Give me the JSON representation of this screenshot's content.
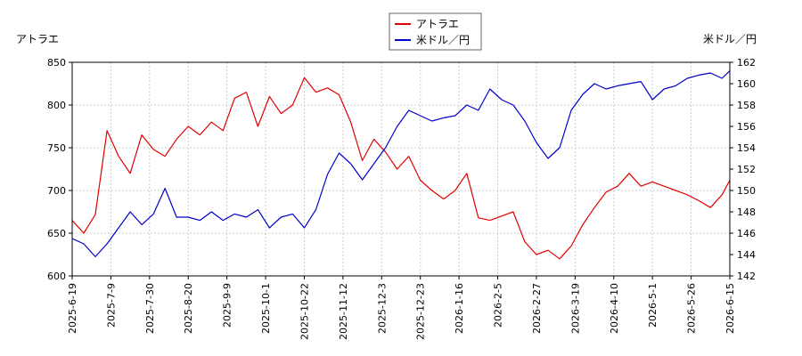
{
  "chart_data": {
    "type": "line",
    "left_axis_label": "アトラエ",
    "right_axis_label": "米ドル／円",
    "legend": [
      "アトラエ",
      "米ドル／円"
    ],
    "legend_position": "top-center",
    "grid": true,
    "x_ticks": [
      "2025-6-19",
      "2025-7-9",
      "2025-7-30",
      "2025-8-20",
      "2025-9-9",
      "2025-10-1",
      "2025-10-22",
      "2025-11-12",
      "2025-12-3",
      "2025-12-23",
      "2026-1-16",
      "2026-2-5",
      "2026-2-27",
      "2026-3-19",
      "2026-4-10",
      "2026-5-1",
      "2026-5-26",
      "2026-6-15"
    ],
    "y_left_ticks": [
      600,
      650,
      700,
      750,
      800,
      850
    ],
    "y_left_range": [
      600,
      850
    ],
    "y_right_ticks": [
      142,
      144,
      146,
      148,
      150,
      152,
      154,
      156,
      158,
      160,
      162
    ],
    "y_right_range": [
      142,
      162
    ],
    "series": [
      {
        "name": "アトラエ",
        "axis": "left",
        "color": "#e00000",
        "x": [
          0,
          0.3,
          0.6,
          0.9,
          1.2,
          1.5,
          1.8,
          2.1,
          2.4,
          2.7,
          3,
          3.3,
          3.6,
          3.9,
          4.2,
          4.5,
          4.8,
          5.1,
          5.4,
          5.7,
          6,
          6.3,
          6.6,
          6.9,
          7.2,
          7.5,
          7.8,
          8.1,
          8.4,
          8.7,
          9,
          9.3,
          9.6,
          9.9,
          10.2,
          10.5,
          10.8,
          11.1,
          11.4,
          11.7,
          12,
          12.3,
          12.6,
          12.9,
          13.2,
          13.5,
          13.8,
          14.1,
          14.4,
          14.7,
          15,
          15.3,
          15.6,
          15.9,
          16.2,
          16.5,
          16.8,
          17
        ],
        "values": [
          665,
          650,
          672,
          770,
          740,
          720,
          765,
          748,
          740,
          760,
          775,
          765,
          780,
          770,
          808,
          815,
          775,
          810,
          790,
          800,
          832,
          815,
          820,
          812,
          780,
          735,
          760,
          745,
          725,
          740,
          712,
          700,
          690,
          700,
          720,
          668,
          665,
          670,
          675,
          640,
          625,
          630,
          620,
          635,
          660,
          680,
          698,
          705,
          720,
          705,
          710,
          705,
          700,
          695,
          688,
          680,
          695,
          712
        ]
      },
      {
        "name": "米ドル／円",
        "axis": "right",
        "color": "#0000cc",
        "x": [
          0,
          0.3,
          0.6,
          0.9,
          1.2,
          1.5,
          1.8,
          2.1,
          2.4,
          2.7,
          3,
          3.3,
          3.6,
          3.9,
          4.2,
          4.5,
          4.8,
          5.1,
          5.4,
          5.7,
          6,
          6.3,
          6.6,
          6.9,
          7.2,
          7.5,
          7.8,
          8.1,
          8.4,
          8.7,
          9,
          9.3,
          9.6,
          9.9,
          10.2,
          10.5,
          10.8,
          11.1,
          11.4,
          11.7,
          12,
          12.3,
          12.6,
          12.9,
          13.2,
          13.5,
          13.8,
          14.1,
          14.4,
          14.7,
          15,
          15.3,
          15.6,
          15.9,
          16.2,
          16.5,
          16.8,
          17
        ],
        "values": [
          145.5,
          145,
          143.8,
          145,
          146.5,
          148,
          146.8,
          147.8,
          150.2,
          147.5,
          147.5,
          147.2,
          148,
          147.2,
          147.8,
          147.5,
          148.2,
          146.5,
          147.5,
          147.8,
          146.5,
          148.2,
          151.5,
          153.5,
          152.5,
          151,
          152.5,
          154,
          156,
          157.5,
          157,
          156.5,
          156.8,
          157,
          158,
          157.5,
          159.5,
          158.5,
          158,
          156.5,
          154.5,
          153,
          154,
          157.5,
          159,
          160,
          159.5,
          159.8,
          160,
          160.2,
          158.5,
          159.5,
          159.8,
          160.5,
          160.8,
          161,
          160.5,
          161.2
        ]
      }
    ]
  }
}
